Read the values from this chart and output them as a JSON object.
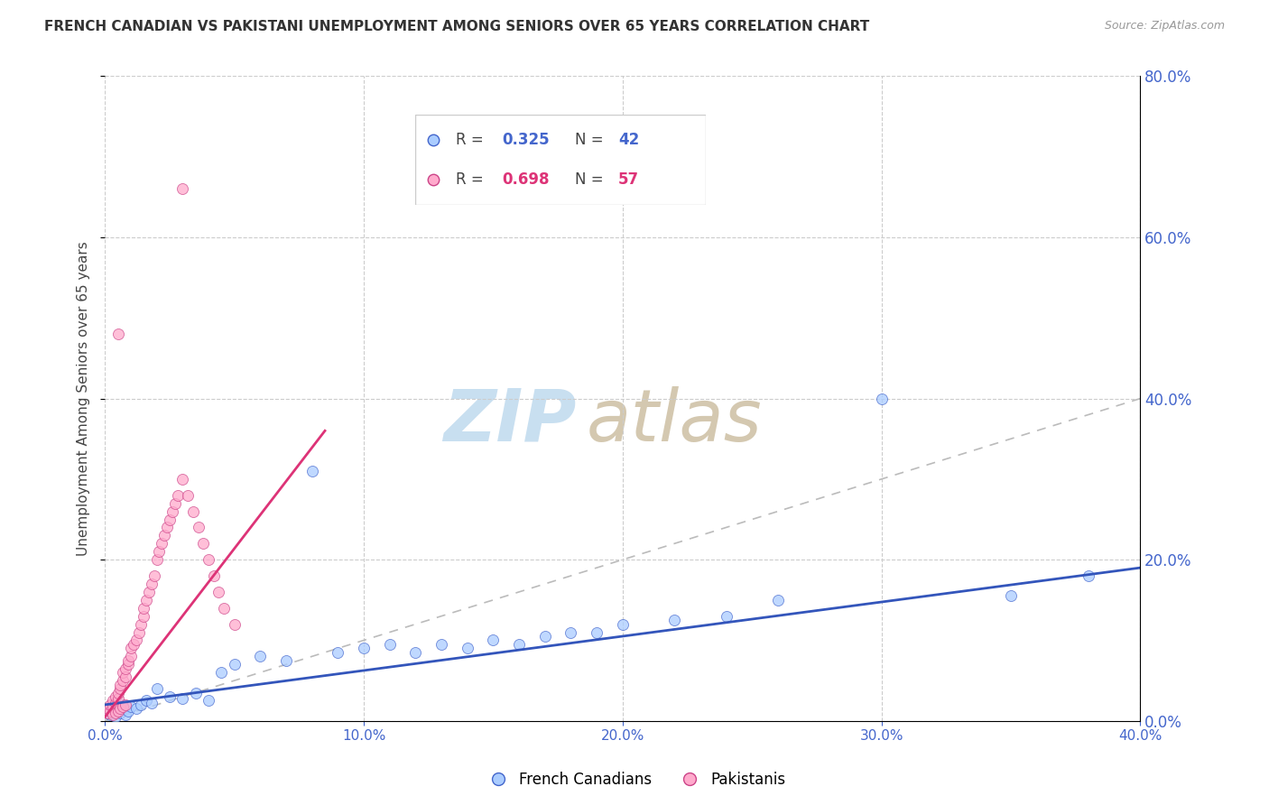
{
  "title": "FRENCH CANADIAN VS PAKISTANI UNEMPLOYMENT AMONG SENIORS OVER 65 YEARS CORRELATION CHART",
  "source": "Source: ZipAtlas.com",
  "ylabel": "Unemployment Among Seniors over 65 years",
  "r_french": 0.325,
  "n_french": 42,
  "r_pakistani": 0.698,
  "n_pakistani": 57,
  "xlim": [
    0.0,
    0.4
  ],
  "ylim": [
    0.0,
    0.8
  ],
  "xticks": [
    0.0,
    0.1,
    0.2,
    0.3,
    0.4
  ],
  "yticks": [
    0.0,
    0.2,
    0.4,
    0.6,
    0.8
  ],
  "french_fill_color": "#aaccff",
  "pakistani_fill_color": "#ffaacc",
  "french_edge_color": "#4466cc",
  "pakistani_edge_color": "#cc4488",
  "french_line_color": "#3355bb",
  "pakistani_line_color": "#dd3377",
  "watermark_color": "#ddeeff",
  "background_color": "#ffffff",
  "french_scatter_x": [
    0.001,
    0.002,
    0.003,
    0.004,
    0.005,
    0.006,
    0.007,
    0.008,
    0.009,
    0.01,
    0.012,
    0.014,
    0.016,
    0.018,
    0.02,
    0.025,
    0.03,
    0.035,
    0.04,
    0.045,
    0.05,
    0.06,
    0.07,
    0.08,
    0.09,
    0.1,
    0.11,
    0.12,
    0.13,
    0.14,
    0.15,
    0.16,
    0.17,
    0.18,
    0.19,
    0.2,
    0.22,
    0.24,
    0.26,
    0.3,
    0.35,
    0.38
  ],
  "french_scatter_y": [
    0.01,
    0.008,
    0.012,
    0.005,
    0.015,
    0.01,
    0.02,
    0.008,
    0.012,
    0.018,
    0.015,
    0.02,
    0.025,
    0.022,
    0.04,
    0.03,
    0.028,
    0.035,
    0.025,
    0.06,
    0.07,
    0.08,
    0.075,
    0.31,
    0.085,
    0.09,
    0.095,
    0.085,
    0.095,
    0.09,
    0.1,
    0.095,
    0.105,
    0.11,
    0.11,
    0.12,
    0.125,
    0.13,
    0.15,
    0.4,
    0.155,
    0.18
  ],
  "pakistani_scatter_x": [
    0.001,
    0.001,
    0.002,
    0.002,
    0.003,
    0.003,
    0.004,
    0.004,
    0.005,
    0.005,
    0.005,
    0.006,
    0.006,
    0.007,
    0.007,
    0.008,
    0.008,
    0.009,
    0.009,
    0.01,
    0.01,
    0.011,
    0.012,
    0.013,
    0.014,
    0.015,
    0.015,
    0.016,
    0.017,
    0.018,
    0.019,
    0.02,
    0.021,
    0.022,
    0.023,
    0.024,
    0.025,
    0.026,
    0.027,
    0.028,
    0.03,
    0.032,
    0.034,
    0.036,
    0.038,
    0.04,
    0.042,
    0.044,
    0.046,
    0.05,
    0.003,
    0.004,
    0.005,
    0.006,
    0.007,
    0.008,
    0.03
  ],
  "pakistani_scatter_y": [
    0.01,
    0.015,
    0.012,
    0.02,
    0.018,
    0.025,
    0.022,
    0.03,
    0.028,
    0.035,
    0.48,
    0.04,
    0.045,
    0.05,
    0.06,
    0.055,
    0.065,
    0.07,
    0.075,
    0.08,
    0.09,
    0.095,
    0.1,
    0.11,
    0.12,
    0.13,
    0.14,
    0.15,
    0.16,
    0.17,
    0.18,
    0.2,
    0.21,
    0.22,
    0.23,
    0.24,
    0.25,
    0.26,
    0.27,
    0.28,
    0.3,
    0.28,
    0.26,
    0.24,
    0.22,
    0.2,
    0.18,
    0.16,
    0.14,
    0.12,
    0.008,
    0.01,
    0.012,
    0.015,
    0.018,
    0.02,
    0.66
  ],
  "fc_trend_x": [
    0.0,
    0.4
  ],
  "fc_trend_y": [
    0.02,
    0.19
  ],
  "pk_trend_x": [
    0.0,
    0.085
  ],
  "pk_trend_y": [
    0.005,
    0.36
  ]
}
